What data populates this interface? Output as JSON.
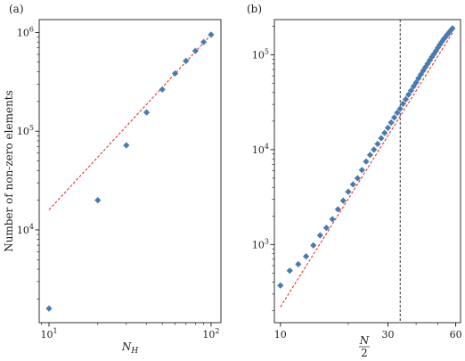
{
  "chart_data": [
    {
      "panel_label": "(a)",
      "type": "scatter",
      "xscale": "log",
      "yscale": "log",
      "xlim": [
        8.7,
        115
      ],
      "ylim": [
        1150,
        1350000
      ],
      "xlabel": "N_H",
      "xlabel_main": "N",
      "xlabel_sub": "H",
      "ylabel": "Number of non-zero elements",
      "x_ticks": [
        {
          "value": 10,
          "base": "10",
          "exp": "1"
        },
        {
          "value": 100,
          "base": "10",
          "exp": "2"
        }
      ],
      "y_ticks": [
        {
          "value": 10000,
          "base": "10",
          "exp": "4"
        },
        {
          "value": 100000,
          "base": "10",
          "exp": "5"
        },
        {
          "value": 1000000,
          "base": "10",
          "exp": "6"
        }
      ],
      "points": {
        "marker": "diamond",
        "color": "#4a7ab0",
        "x": [
          10,
          20,
          30,
          40,
          50,
          60,
          70,
          80,
          90,
          100
        ],
        "y": [
          1600,
          20000,
          72000,
          155000,
          265000,
          385000,
          515000,
          650000,
          800000,
          950000
        ]
      },
      "fit": {
        "style": "dashed",
        "color": "#e8211a",
        "x": [
          10,
          100
        ],
        "y": [
          16000,
          950000
        ]
      }
    },
    {
      "panel_label": "(b)",
      "type": "scatter",
      "xscale": "log",
      "yscale": "log",
      "xlim": [
        9.4,
        63
      ],
      "ylim": [
        150,
        235000
      ],
      "xlabel_num": "N",
      "xlabel_den": "2",
      "x_ticks": [
        {
          "value": 10,
          "label": "10"
        },
        {
          "value": 30,
          "label": "30"
        },
        {
          "value": 60,
          "label": "60"
        }
      ],
      "y_ticks": [
        {
          "value": 1000,
          "base": "10",
          "exp": "3"
        },
        {
          "value": 10000,
          "base": "10",
          "exp": "4"
        },
        {
          "value": 100000,
          "base": "10",
          "exp": "5"
        }
      ],
      "points": {
        "marker": "diamond",
        "color": "#4a7ab0",
        "x": [
          10,
          11,
          12,
          13,
          14,
          15,
          16,
          17,
          18,
          19,
          20,
          21,
          22,
          23,
          24,
          25,
          26,
          27,
          28,
          29,
          30,
          31,
          32,
          33,
          34,
          35,
          36,
          37,
          38,
          39,
          40,
          41,
          42,
          43,
          44,
          45,
          46,
          47,
          48,
          49,
          50,
          51,
          52,
          53,
          54,
          55,
          56,
          57,
          58
        ],
        "y": [
          370,
          530,
          620,
          750,
          980,
          1250,
          1500,
          1850,
          2350,
          2900,
          3600,
          4300,
          5000,
          6100,
          7500,
          8800,
          10000,
          11500,
          13200,
          15000,
          17000,
          19300,
          21800,
          24500,
          27000,
          30500,
          34000,
          38000,
          42000,
          46500,
          51000,
          56500,
          62000,
          68000,
          74000,
          80500,
          87500,
          95000,
          102000,
          110000,
          119000,
          128000,
          137000,
          146000,
          154000,
          163000,
          172000,
          181000,
          190000
        ]
      },
      "fit": {
        "style": "dashed",
        "color": "#e8211a",
        "x": [
          10,
          58
        ],
        "y": [
          220,
          170000
        ]
      },
      "vline": {
        "x": 34,
        "style": "dashed",
        "color": "#333333"
      }
    }
  ]
}
